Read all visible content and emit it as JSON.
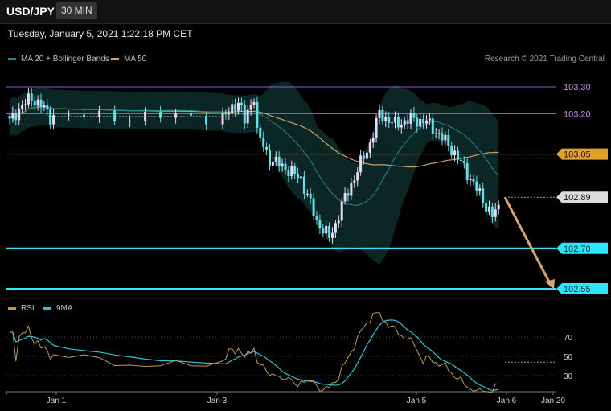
{
  "header": {
    "symbol": "USD/JPY",
    "timeframe": "30 MIN"
  },
  "datetime": "Tuesday, January 5, 2021 1:22:18 PM CET",
  "legend": {
    "ma20_bb": "MA 20 + Bollinger Bands",
    "ma50": "MA 50",
    "research": "Research © 2021 Trading Central"
  },
  "rsi_legend": {
    "rsi": "RSI",
    "ma9": "9MA"
  },
  "colors": {
    "ma20": "#1f8a8a",
    "ma50": "#c8a46e",
    "bullish": "#f0d6f5",
    "bearish": "#5de3e6",
    "resistance": "#8e5bd6",
    "pivot": "#e0a12a",
    "support": "#2ee6ff",
    "rsi": "#c09a55",
    "rsi_ma": "#29c6d4",
    "arrow": "#d8a56d"
  },
  "chart_data": [
    {
      "type": "candlestick",
      "x_ticks": [
        "Jan 1",
        "Jan 3",
        "Jan 5",
        "Jan 6",
        "Jan 20"
      ],
      "ylim": [
        102.5,
        103.36
      ],
      "levels": [
        {
          "value": 103.3,
          "label": "103.30",
          "kind": "resistance"
        },
        {
          "value": 103.2,
          "label": "103.20",
          "kind": "resistance"
        },
        {
          "value": 103.05,
          "label": "103.05",
          "kind": "pivot"
        },
        {
          "value": 102.89,
          "label": "102.89",
          "kind": "last"
        },
        {
          "value": 102.7,
          "label": "102.70",
          "kind": "support"
        },
        {
          "value": 102.55,
          "label": "102.55",
          "kind": "support"
        }
      ],
      "forecast_arrow": {
        "from": 102.89,
        "to": 102.55
      },
      "series": [
        {
          "name": "MA 20 + Bollinger Bands"
        },
        {
          "name": "MA 50"
        }
      ]
    },
    {
      "type": "line",
      "ylim": [
        15,
        95
      ],
      "y_ticks": [
        70,
        50,
        30
      ],
      "series": [
        {
          "name": "RSI"
        },
        {
          "name": "9MA"
        }
      ]
    }
  ]
}
